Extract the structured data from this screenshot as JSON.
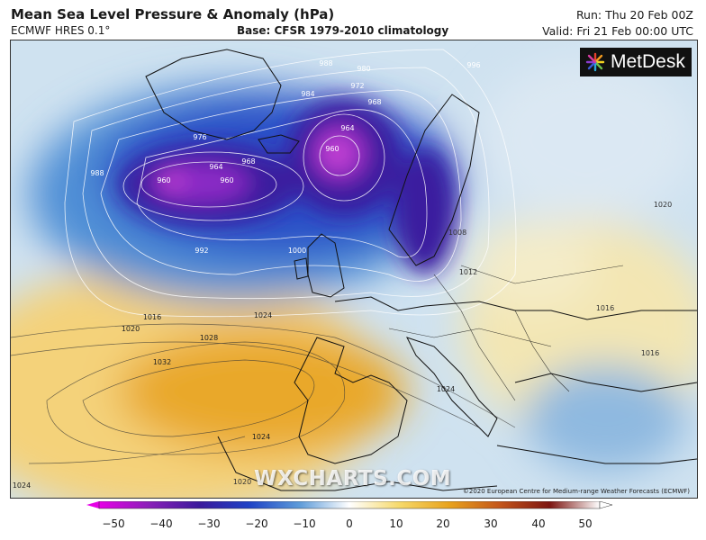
{
  "header": {
    "title": "Mean Sea Level Pressure & Anomaly (hPa)",
    "model": "ECMWF HRES 0.1°",
    "base": "Base: CFSR 1979-2010 climatology",
    "run": "Run: Thu 20 Feb 00Z",
    "valid": "Valid: Fri 21 Feb 00:00 UTC"
  },
  "logo": {
    "text": "MetDesk",
    "icon": "metdesk-star-icon"
  },
  "watermark": "WXCHARTS.COM",
  "copyright": "©2020 European Centre for Medium-range Weather Forecasts (ECMWF)",
  "isobar_labels": [
    "960",
    "960",
    "960",
    "964",
    "964",
    "968",
    "968",
    "972",
    "976",
    "980",
    "984",
    "988",
    "988",
    "992",
    "996",
    "1000",
    "1008",
    "1012",
    "1016",
    "1016",
    "1016",
    "1020",
    "1020",
    "1020",
    "1024",
    "1024",
    "1024",
    "1024",
    "1028",
    "1032"
  ],
  "colorbar": {
    "ticks": [
      "−50",
      "−40",
      "−30",
      "−20",
      "−10",
      "0",
      "10",
      "20",
      "30",
      "40",
      "50"
    ],
    "min": -50,
    "max": 50,
    "colors": {
      "-50": "#e600e6",
      "-40": "#8a1fb8",
      "-30": "#3b1a9c",
      "-20": "#1f43c6",
      "-10": "#5d9bd9",
      "0": "#ffffff",
      "10": "#f6d96a",
      "20": "#e8a21c",
      "30": "#c4561b",
      "40": "#7d1511",
      "50": "#ffffff"
    }
  }
}
